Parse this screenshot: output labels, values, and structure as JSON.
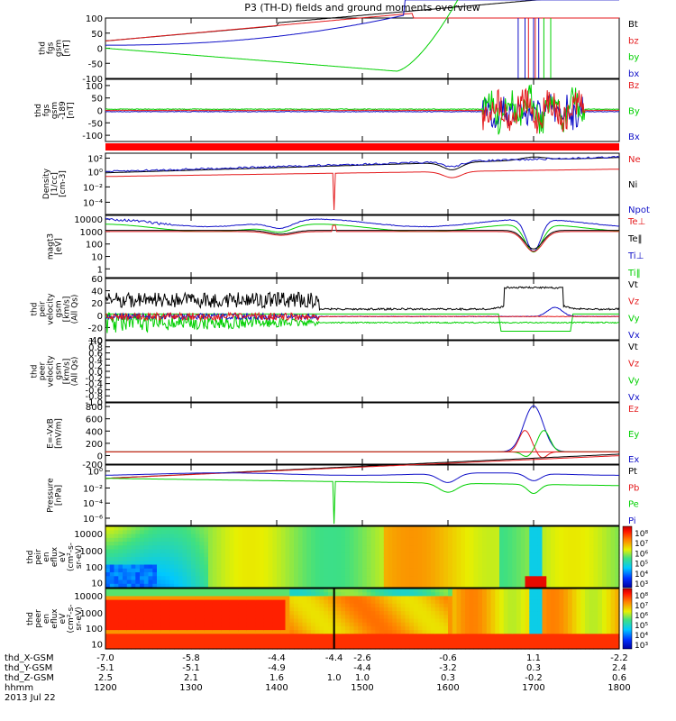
{
  "title": "P3 (TH-D) fields and ground moments overview",
  "time_ticks": [
    "1200",
    "1300",
    "1400",
    "1500",
    "1600",
    "1700",
    "1800"
  ],
  "eph_rows": [
    {
      "label": "thd_X-GSM",
      "values": [
        "-7.0",
        "-5.8",
        "-4.4",
        "-2.6",
        "-0.6",
        "1.1",
        "-2.2"
      ]
    },
    {
      "label": "thd_Y-GSM",
      "values": [
        "-5.1",
        "-5.1",
        "-4.9",
        "-4.4",
        "-3.2",
        "0.3",
        "2.4"
      ]
    },
    {
      "label": "thd_Z-GSM",
      "values": [
        "2.5",
        "2.1",
        "1.6",
        "1.0",
        "0.3",
        "-0.2",
        "0.6"
      ]
    },
    {
      "label": "hhmm",
      "values": [
        "1200",
        "1300",
        "1400",
        "1500",
        "1600",
        "1700",
        "1800"
      ]
    }
  ],
  "eph_values_alt": [
    "-4.4",
    "1.0"
  ],
  "date_label": "2013 Jul 22",
  "colors": {
    "black": "#000000",
    "red": "#e41a1c",
    "green": "#00d000",
    "blue": "#1010c8"
  },
  "chart_data": [
    {
      "type": "line",
      "ylabel": [
        "thd",
        "fgs",
        "gsm",
        "[nT]"
      ],
      "ylim": [
        -100,
        100
      ],
      "yticks": [
        "100",
        "50",
        "0",
        "-50",
        "-100"
      ],
      "series": [
        {
          "name": "Bt",
          "color": "#000000"
        },
        {
          "name": "bz",
          "color": "#e41a1c"
        },
        {
          "name": "by",
          "color": "#00d000"
        },
        {
          "name": "bx",
          "color": "#1010c8"
        }
      ]
    },
    {
      "type": "line",
      "ylabel": [
        "thd",
        "fgs",
        "gsm",
        "-189",
        "[nT]"
      ],
      "ylim": [
        -125,
        125
      ],
      "yticks": [
        "100",
        "50",
        "0",
        "-50",
        "-100"
      ],
      "series": [
        {
          "name": "Bz",
          "color": "#e41a1c"
        },
        {
          "name": "By",
          "color": "#00d000"
        },
        {
          "name": "Bx",
          "color": "#1010c8"
        }
      ]
    },
    {
      "type": "line",
      "ylabel": [
        "Density",
        "[1/cc]",
        "[cm-3]"
      ],
      "scale": "log",
      "yticks": [
        "10²",
        "10⁰",
        "10⁻²",
        "10⁻⁴"
      ],
      "series": [
        {
          "name": "Ne",
          "color": "#e41a1c"
        },
        {
          "name": "Ni",
          "color": "#000000"
        },
        {
          "name": "Npot",
          "color": "#1010c8"
        }
      ]
    },
    {
      "type": "line",
      "ylabel": [
        "magt3",
        "[eV]"
      ],
      "scale": "log",
      "yticks": [
        "10000",
        "1000",
        "100",
        "10",
        "1"
      ],
      "series": [
        {
          "name": "Te⊥",
          "color": "#e41a1c"
        },
        {
          "name": "Te‖",
          "color": "#000000"
        },
        {
          "name": "Ti⊥",
          "color": "#1010c8"
        },
        {
          "name": "Ti‖",
          "color": "#00d000"
        }
      ]
    },
    {
      "type": "line",
      "ylabel": [
        "thd",
        "peir",
        "velocity",
        "gsm",
        "[km/s]",
        "(All Qs)"
      ],
      "ylim": [
        -40,
        60
      ],
      "yticks": [
        "60",
        "40",
        "20",
        "0",
        "-20",
        "-40"
      ],
      "series": [
        {
          "name": "Vt",
          "color": "#000000"
        },
        {
          "name": "Vz",
          "color": "#e41a1c"
        },
        {
          "name": "Vy",
          "color": "#00d000"
        },
        {
          "name": "Vx",
          "color": "#1010c8"
        }
      ]
    },
    {
      "type": "line",
      "ylabel": [
        "thd",
        "peer",
        "velocity",
        "gsm",
        "[km/s]",
        "(All Qs)"
      ],
      "ylim": [
        -1.0,
        1.0
      ],
      "yticks": [
        "1.0",
        "0.8",
        "0.6",
        "0.4",
        "0.2",
        "0.0",
        "-0.2",
        "-0.4",
        "-0.6",
        "-0.8",
        "-1.0"
      ],
      "series": [
        {
          "name": "Vt",
          "color": "#000000"
        },
        {
          "name": "Vz",
          "color": "#e41a1c"
        },
        {
          "name": "Vy",
          "color": "#00d000"
        },
        {
          "name": "Vx",
          "color": "#1010c8"
        }
      ]
    },
    {
      "type": "line",
      "ylabel": [
        "E=-VxB",
        "[mV/m]"
      ],
      "ylim": [
        -200,
        800
      ],
      "yticks": [
        "800",
        "600",
        "400",
        "200",
        "0",
        "-200"
      ],
      "series": [
        {
          "name": "Ez",
          "color": "#e41a1c"
        },
        {
          "name": "Ey",
          "color": "#00d000"
        },
        {
          "name": "Ex",
          "color": "#1010c8"
        }
      ]
    },
    {
      "type": "line",
      "ylabel": [
        "Pressure",
        "[nPa]"
      ],
      "scale": "log",
      "yticks": [
        "10⁰",
        "10⁻²",
        "10⁻⁴",
        "10⁻⁶"
      ],
      "series": [
        {
          "name": "Pt",
          "color": "#000000"
        },
        {
          "name": "Pb",
          "color": "#e41a1c"
        },
        {
          "name": "Pe",
          "color": "#00d000"
        },
        {
          "name": "Pi",
          "color": "#1010c8"
        }
      ]
    },
    {
      "type": "heatmap",
      "ylabel": [
        "thd",
        "peir",
        "en",
        "eflux",
        "eV",
        "(cm²-s-",
        "sr-eV)"
      ],
      "yticks": [
        "10000",
        "1000",
        "100",
        "10"
      ],
      "colorbar_ticks": [
        "10⁸",
        "10⁷",
        "10⁶",
        "10⁵",
        "10⁴",
        "10³"
      ]
    },
    {
      "type": "heatmap",
      "ylabel": [
        "thd",
        "peer",
        "en",
        "eflux",
        "eV",
        "(cm²-s-",
        "sr-eV)"
      ],
      "yticks": [
        "10000",
        "1000",
        "100",
        "10"
      ],
      "colorbar_ticks": [
        "10⁸",
        "10⁷",
        "10⁶",
        "10⁵",
        "10⁴",
        "10³"
      ]
    }
  ]
}
